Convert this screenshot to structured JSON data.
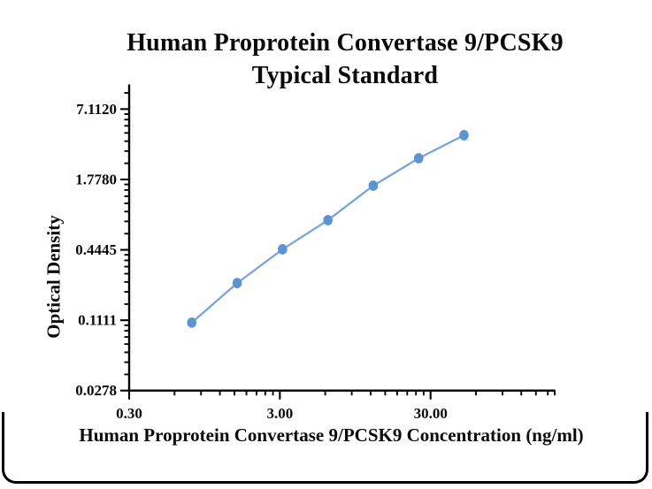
{
  "figure": {
    "title_line1": "Human Proprotein Convertase 9/PCSK9",
    "title_line2": "Typical Standard"
  },
  "chart_data": {
    "type": "line",
    "title": "Human Proprotein Convertase 9/PCSK9 Typical Standard",
    "xlabel": "Human Proprotein Convertase 9/PCSK9 Concentration (ng/ml)",
    "ylabel": "Optical Density",
    "x_scale": "log10",
    "y_scale": "log4",
    "grid": false,
    "legend": "none",
    "xlim": [
      0.3,
      200
    ],
    "ylim": [
      0.0278,
      11.5
    ],
    "x_ticks": {
      "values": [
        0.3,
        3,
        30
      ],
      "labels": [
        "0.30",
        "3.00",
        "30.00"
      ]
    },
    "y_ticks": {
      "values": [
        0.0278,
        0.1111,
        0.4445,
        1.778,
        7.112
      ],
      "labels": [
        "0.0278",
        "0.1111",
        "0.4445",
        "1.7780",
        "7.1120"
      ]
    },
    "series": [
      {
        "name": "Typical Standard",
        "x": [
          0.781,
          1.563,
          3.125,
          6.25,
          12.5,
          25,
          50
        ],
        "y": [
          0.106,
          0.231,
          0.449,
          0.797,
          1.573,
          2.697,
          4.248
        ],
        "marker": "circle",
        "marker_color": "#5B94D3",
        "line_color": "#78A6DC"
      }
    ],
    "axis_color": "#000000"
  },
  "frame": {
    "color": "#000000"
  }
}
